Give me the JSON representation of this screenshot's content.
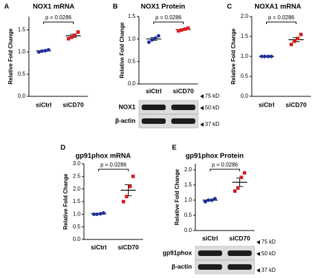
{
  "chart_data": [
    {
      "type": "dot",
      "panel": "A",
      "title": "NOX1 mRNA",
      "ylabel": "Relative Fold Change",
      "annotation": "p = 0.0286",
      "categories": [
        "siCtrl",
        "siCD70"
      ],
      "groups": [
        {
          "color": "#1f2f9e",
          "values": [
            1.0,
            1.02,
            1.03,
            1.05
          ],
          "mean": 1.025,
          "sem": 0.01
        },
        {
          "color": "#d42020",
          "values": [
            1.3,
            1.33,
            1.38,
            1.45
          ],
          "mean": 1.365,
          "sem": 0.033
        }
      ],
      "ylim": [
        0,
        1.8
      ],
      "yticks": [
        {
          "value": 0,
          "label": "0.0"
        },
        {
          "value": 0.5,
          "label": "0.5"
        },
        {
          "value": 1,
          "label": "1.0"
        },
        {
          "value": 1.5,
          "label": "1.5"
        }
      ]
    },
    {
      "type": "dot",
      "panel": "B",
      "title": "NOX1 Protein",
      "ylabel": "Relative Fold Change",
      "annotation": "p = 0.0286",
      "categories": [
        "siCtrl",
        "siCD70"
      ],
      "groups": [
        {
          "color": "#1f2f9e",
          "values": [
            0.93,
            0.98,
            1.02,
            1.07
          ],
          "mean": 1.0,
          "sem": 0.03
        },
        {
          "color": "#d42020",
          "values": [
            1.18,
            1.2,
            1.22,
            1.24
          ],
          "mean": 1.21,
          "sem": 0.013
        }
      ],
      "ylim": [
        0,
        1.5
      ],
      "yticks": [
        {
          "value": 0,
          "label": "0.0"
        },
        {
          "value": 0.5,
          "label": "0.5"
        },
        {
          "value": 1,
          "label": "1.0"
        },
        {
          "value": 1.5,
          "label": "1.5"
        }
      ],
      "blot": {
        "bands": [
          "NOX1",
          "β-actin"
        ],
        "markers": [
          "75 kD",
          "50 kD",
          "37 kD"
        ]
      }
    },
    {
      "type": "dot",
      "panel": "C",
      "title": "NOXA1 mRNA",
      "ylabel": "Relative Fold Change",
      "annotation": "p = 0.0286",
      "categories": [
        "siCtrl",
        "siCD70"
      ],
      "groups": [
        {
          "color": "#1f2f9e",
          "values": [
            1.0,
            1.0,
            1.0,
            1.0
          ],
          "mean": 1.0,
          "sem": 0
        },
        {
          "color": "#d42020",
          "values": [
            1.3,
            1.38,
            1.45,
            1.55
          ],
          "mean": 1.42,
          "sem": 0.05
        }
      ],
      "ylim": [
        0,
        2.0
      ],
      "yticks": [
        {
          "value": 0,
          "label": "0.0"
        },
        {
          "value": 0.5,
          "label": "0.5"
        },
        {
          "value": 1,
          "label": "1.0"
        },
        {
          "value": 1.5,
          "label": "1.5"
        },
        {
          "value": 2,
          "label": "2.0"
        }
      ]
    },
    {
      "type": "dot",
      "panel": "D",
      "title": "gp91phox mRNA",
      "ylabel": "Relative Fold  Change",
      "annotation": "p = 0.0286",
      "categories": [
        "siCtrl",
        "siCD70"
      ],
      "groups": [
        {
          "color": "#1f2f9e",
          "values": [
            1.0,
            1.0,
            1.02,
            1.05
          ],
          "mean": 1.02,
          "sem": 0.01
        },
        {
          "color": "#d42020",
          "values": [
            1.5,
            1.7,
            2.1,
            2.5
          ],
          "mean": 1.95,
          "sem": 0.22
        }
      ],
      "ylim": [
        0,
        3.0
      ],
      "yticks": [
        {
          "value": 0,
          "label": "0.0"
        },
        {
          "value": 0.5,
          "label": "0.5"
        },
        {
          "value": 1,
          "label": "1.0"
        },
        {
          "value": 1.5,
          "label": "1.5"
        },
        {
          "value": 2,
          "label": "2.0"
        },
        {
          "value": 2.5,
          "label": "2.5"
        },
        {
          "value": 3,
          "label": "3.0"
        }
      ]
    },
    {
      "type": "dot",
      "panel": "E",
      "title": "gp91phox Protein",
      "ylabel": "Relative Fold  Change",
      "annotation": "p = 0.0286",
      "categories": [
        "siCtrl",
        "siCD70"
      ],
      "groups": [
        {
          "color": "#1f2f9e",
          "values": [
            0.95,
            1.0,
            1.0,
            1.05
          ],
          "mean": 1.0,
          "sem": 0.02
        },
        {
          "color": "#d42020",
          "values": [
            1.3,
            1.4,
            1.75,
            1.9
          ],
          "mean": 1.59,
          "sem": 0.14
        }
      ],
      "ylim": [
        0,
        2.2
      ],
      "yticks": [
        {
          "value": 0,
          "label": "0.0"
        },
        {
          "value": 0.5,
          "label": "0.5"
        },
        {
          "value": 1,
          "label": "1.0"
        },
        {
          "value": 1.5,
          "label": "1.5"
        },
        {
          "value": 2,
          "label": "2.0"
        }
      ],
      "blot": {
        "bands": [
          "gp91phox",
          "β-actin"
        ],
        "markers": [
          "75 kD",
          "50 kD",
          "37 kD"
        ]
      }
    }
  ]
}
